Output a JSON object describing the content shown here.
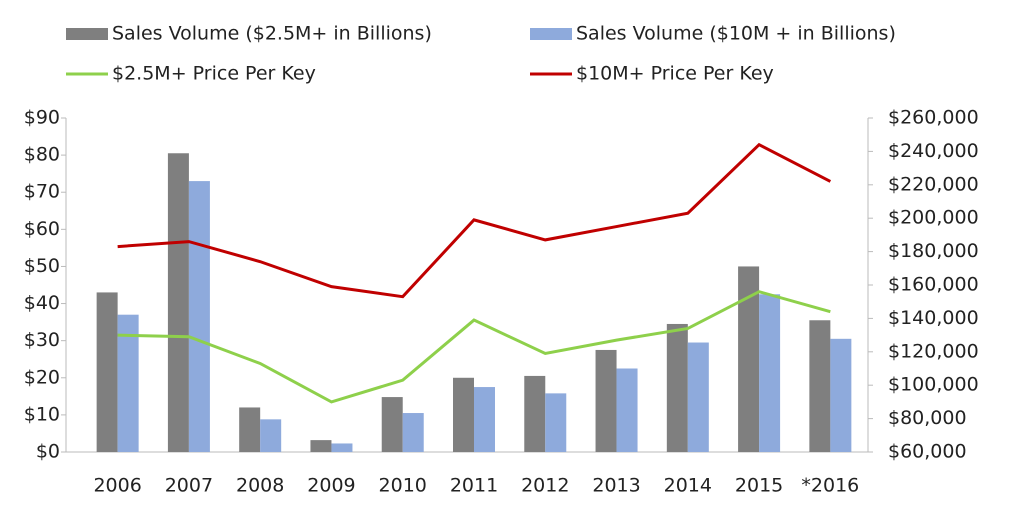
{
  "chart_data": {
    "type": "bar",
    "categories": [
      "2006",
      "2007",
      "2008",
      "2009",
      "2010",
      "2011",
      "2012",
      "2013",
      "2014",
      "2015",
      "*2016"
    ],
    "series": [
      {
        "name": "Sales Volume ($2.5M+ in Billions)",
        "color": "#7f7f7f",
        "type": "bar",
        "values": [
          43,
          80.5,
          12,
          3.2,
          14.8,
          20,
          20.5,
          27.5,
          34.5,
          50,
          35.5
        ]
      },
      {
        "name": "Sales Volume ($10M + in Billions)",
        "color": "#8eaadc",
        "type": "bar",
        "values": [
          37,
          73,
          8.8,
          2.3,
          10.5,
          17.5,
          15.8,
          22.5,
          29.5,
          42.5,
          30.5
        ]
      },
      {
        "name": "$2.5M+ Price Per Key",
        "color": "#8ed04b",
        "type": "line",
        "axis": "y2",
        "values": [
          130000,
          129000,
          113000,
          90000,
          103000,
          139000,
          119000,
          127000,
          134000,
          156000,
          144000
        ]
      },
      {
        "name": "$10M+ Price Per Key",
        "color": "#c00000",
        "type": "line",
        "axis": "y2",
        "values": [
          183000,
          186000,
          174000,
          159000,
          153000,
          199000,
          187000,
          195000,
          203000,
          244000,
          222000
        ]
      }
    ],
    "ylim": [
      0,
      90
    ],
    "yticks": [
      {
        "value": 0,
        "label": "$0"
      },
      {
        "value": 10,
        "label": "$10"
      },
      {
        "value": 20,
        "label": "$20"
      },
      {
        "value": 30,
        "label": "$30"
      },
      {
        "value": 40,
        "label": "$40"
      },
      {
        "value": 50,
        "label": "$50"
      },
      {
        "value": 60,
        "label": "$60"
      },
      {
        "value": 70,
        "label": "$70"
      },
      {
        "value": 80,
        "label": "$80"
      },
      {
        "value": 90,
        "label": "$90"
      }
    ],
    "y2lim": [
      60000,
      260000
    ],
    "y2ticks": [
      {
        "value": 60000,
        "label": "$60,000"
      },
      {
        "value": 80000,
        "label": "$80,000"
      },
      {
        "value": 100000,
        "label": "$100,000"
      },
      {
        "value": 120000,
        "label": "$120,000"
      },
      {
        "value": 140000,
        "label": "$140,000"
      },
      {
        "value": 160000,
        "label": "$160,000"
      },
      {
        "value": 180000,
        "label": "$180,000"
      },
      {
        "value": 200000,
        "label": "$200,000"
      },
      {
        "value": 220000,
        "label": "$220,000"
      },
      {
        "value": 240000,
        "label": "$240,000"
      },
      {
        "value": 260000,
        "label": "$260,000"
      }
    ],
    "grid": false
  }
}
